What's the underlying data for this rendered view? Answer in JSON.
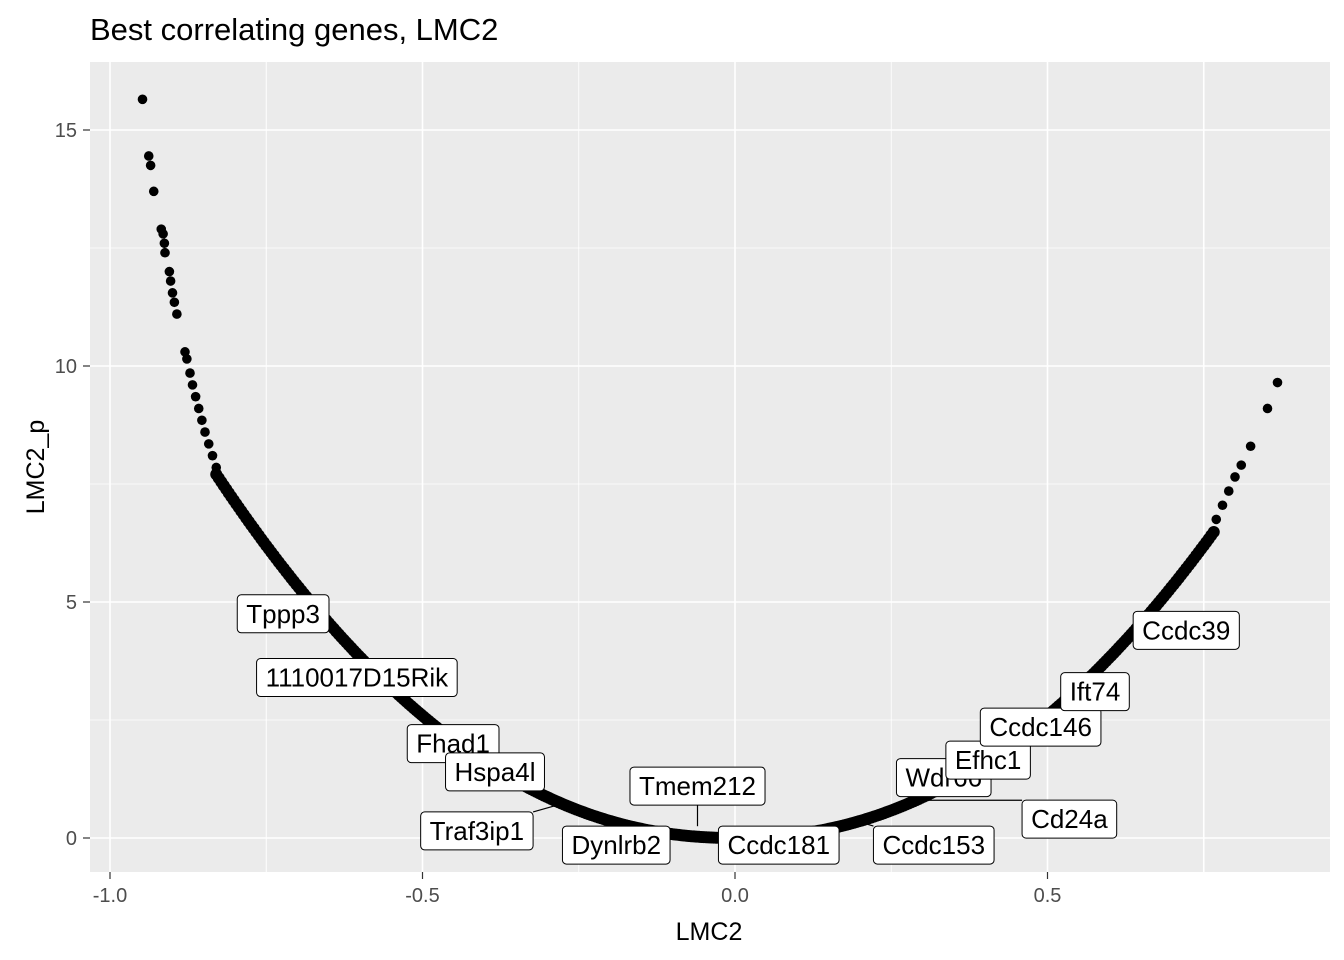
{
  "chart_data": {
    "type": "scatter",
    "title": "Best correlating genes, LMC2",
    "xlabel": "LMC2",
    "ylabel": "LMC2_p",
    "xlim": [
      -1.07,
      1.9
    ],
    "ylim": [
      -0.75,
      16.2
    ],
    "x_ticks": [
      -1.0,
      -0.5,
      0.0,
      0.5
    ],
    "x_tick_labels": [
      "-1.0",
      "-0.5",
      "0.0",
      "0.5"
    ],
    "y_ticks": [
      0,
      5,
      10,
      15
    ],
    "y_tick_labels": [
      "0",
      "5",
      "10",
      "15"
    ],
    "grid": true,
    "background": "#ebebeb",
    "grid_color": "#ffffff",
    "point_color": "#000000",
    "points": [
      [
        -0.948,
        15.65
      ],
      [
        -0.938,
        14.45
      ],
      [
        -0.935,
        14.25
      ],
      [
        -0.93,
        13.7
      ],
      [
        -0.918,
        12.9
      ],
      [
        -0.915,
        12.8
      ],
      [
        -0.913,
        12.6
      ],
      [
        -0.912,
        12.4
      ],
      [
        -0.905,
        12.0
      ],
      [
        -0.903,
        11.8
      ],
      [
        -0.9,
        11.55
      ],
      [
        -0.897,
        11.35
      ],
      [
        -0.893,
        11.1
      ],
      [
        -0.88,
        10.3
      ],
      [
        -0.877,
        10.15
      ],
      [
        -0.872,
        9.85
      ],
      [
        -0.868,
        9.6
      ],
      [
        -0.863,
        9.35
      ],
      [
        -0.858,
        9.1
      ],
      [
        -0.853,
        8.85
      ],
      [
        -0.848,
        8.6
      ],
      [
        -0.842,
        8.35
      ],
      [
        -0.836,
        8.1
      ],
      [
        -0.83,
        7.85
      ],
      [
        0.868,
        9.65
      ],
      [
        0.852,
        9.1
      ],
      [
        0.825,
        8.3
      ],
      [
        0.81,
        7.9
      ],
      [
        0.8,
        7.65
      ],
      [
        0.79,
        7.35
      ],
      [
        0.78,
        7.05
      ],
      [
        0.77,
        6.75
      ]
    ],
    "curve": {
      "description": "dense band of genes",
      "left": {
        "x0": -0.83,
        "y0": 7.85,
        "x1": 0.0,
        "y1": 0.0,
        "scale": 11.5,
        "power": 2.15
      },
      "right": {
        "x0": 0.0,
        "y0": 0.0,
        "x1": 0.77,
        "y1": 6.75,
        "scale": 11.5,
        "power": 2.15
      }
    },
    "labels": [
      {
        "text": "Tppp3",
        "x": -0.64,
        "y": 4.75,
        "box_x": -0.723,
        "box_y": 4.75,
        "leader": false
      },
      {
        "text": "1110017D15Rik",
        "x": -0.58,
        "y": 3.4,
        "box_x": -0.605,
        "box_y": 3.4,
        "leader": false
      },
      {
        "text": "Fhad1",
        "x": -0.47,
        "y": 2.0,
        "box_x": -0.451,
        "box_y": 2.0,
        "leader": false
      },
      {
        "text": "Hspa4l",
        "x": -0.39,
        "y": 1.4,
        "box_x": -0.384,
        "box_y": 1.4,
        "leader": false
      },
      {
        "text": "Traf3ip1",
        "x": -0.27,
        "y": 0.75,
        "box_x": -0.413,
        "box_y": 0.15,
        "leader": true
      },
      {
        "text": "Dynlrb2",
        "x": -0.19,
        "y": 0.35,
        "box_x": -0.19,
        "box_y": -0.15,
        "leader": false
      },
      {
        "text": "Tmem212",
        "x": -0.06,
        "y": 0.25,
        "box_x": -0.06,
        "box_y": 1.1,
        "leader": true
      },
      {
        "text": "Ccdc181",
        "x": 0.05,
        "y": 0.03,
        "box_x": 0.07,
        "box_y": -0.15,
        "leader": false
      },
      {
        "text": "Ccdc153",
        "x": 0.185,
        "y": 0.4,
        "box_x": 0.318,
        "box_y": -0.15,
        "leader": true
      },
      {
        "text": "Cd24a",
        "x": 0.27,
        "y": 0.8,
        "box_x": 0.535,
        "box_y": 0.4,
        "leader": true
      },
      {
        "text": "Wdr66",
        "x": 0.3,
        "y": 1.2,
        "box_x": 0.334,
        "box_y": 1.28,
        "leader": false
      },
      {
        "text": "Efhc1",
        "x": 0.38,
        "y": 1.75,
        "box_x": 0.405,
        "box_y": 1.65,
        "leader": false
      },
      {
        "text": "Ccdc146",
        "x": 0.48,
        "y": 2.35,
        "box_x": 0.489,
        "box_y": 2.35,
        "leader": false
      },
      {
        "text": "Ift74",
        "x": 0.56,
        "y": 3.05,
        "box_x": 0.576,
        "box_y": 3.1,
        "leader": false
      },
      {
        "text": "Ccdc39",
        "x": 0.64,
        "y": 4.4,
        "box_x": 0.722,
        "box_y": 4.4,
        "leader": false
      }
    ]
  }
}
